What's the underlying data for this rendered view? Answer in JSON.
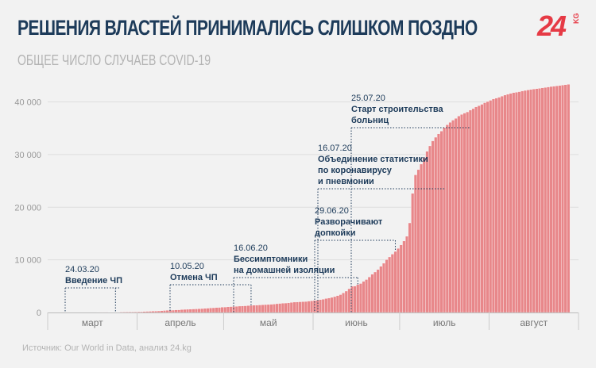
{
  "title": "РЕШЕНИЯ ВЛАСТЕЙ ПРИНИМАЛИСЬ СЛИШКОМ ПОЗДНО",
  "subtitle": "ОБЩЕЕ ЧИСЛО СЛУЧАЕВ COVID-19",
  "logo": {
    "number": "24",
    "suffix": "KG"
  },
  "source": "Источник: Our World in Data, анализ 24.kg",
  "colors": {
    "bar": "#e8878a",
    "bar_edge": "#ffffff",
    "annotation": "#1d3b5a",
    "axis": "#999999",
    "grid": "#dddddd"
  },
  "chart_data": {
    "type": "bar",
    "title": "ОБЩЕЕ ЧИСЛО СЛУЧАЕВ COVID-19",
    "xlabel": "",
    "ylabel": "",
    "ylim": [
      0,
      44000
    ],
    "grid": true,
    "y_ticks": [
      0,
      10000,
      20000,
      30000,
      40000
    ],
    "y_tick_labels": [
      "0",
      "10 000",
      "20 000",
      "30 000",
      "40 000"
    ],
    "x_month_labels": [
      "март",
      "апрель",
      "май",
      "июнь",
      "июль",
      "август"
    ],
    "start_date": "2020-03-18",
    "end_date": "2020-08-31",
    "values": [
      3,
      6,
      14,
      16,
      42,
      44,
      44,
      58,
      84,
      94,
      107,
      111,
      116,
      130,
      144,
      147,
      188,
      216,
      228,
      270,
      280,
      298,
      339,
      377,
      419,
      430,
      449,
      489,
      506,
      554,
      590,
      612,
      631,
      665,
      682,
      708,
      746,
      777,
      818,
      870,
      895,
      931,
      962,
      1017,
      1036,
      1082,
      1117,
      1138,
      1172,
      1216,
      1243,
      1270,
      1317,
      1350,
      1380,
      1403,
      1433,
      1468,
      1503,
      1519,
      1562,
      1594,
      1662,
      1716,
      1763,
      1794,
      1839,
      1908,
      1974,
      2007,
      2032,
      2055,
      2093,
      2166,
      2207,
      2285,
      2333,
      2437,
      2520,
      2653,
      2760,
      2868,
      3017,
      3199,
      3394,
      3726,
      4069,
      4513,
      4989,
      5017,
      5296,
      5506,
      5922,
      6261,
      6758,
      7262,
      7691,
      8160,
      8770,
      9358,
      10049,
      10557,
      11089,
      11591,
      12184,
      12853,
      13580,
      14480,
      17024,
      22631,
      26150,
      27143,
      28195,
      29443,
      30616,
      31653,
      32606,
      33296,
      33947,
      34461,
      35137,
      35659,
      36129,
      36543,
      36889,
      37332,
      37636,
      37887,
      38110,
      38444,
      38733,
      39074,
      39296,
      39552,
      39852,
      40080,
      40312,
      40581,
      40728,
      40900,
      41113,
      41309,
      41482,
      41629,
      41775,
      41845,
      41950,
      42089,
      42190,
      42280,
      42377,
      42457,
      42525,
      42587,
      42682,
      42766,
      42849,
      42935,
      43001,
      43063,
      43126,
      43205,
      43279,
      43354
    ]
  },
  "annotations": [
    {
      "date": "24.03.20",
      "text_lines": [
        "Введение ЧП"
      ]
    },
    {
      "date": "10.05.20",
      "text_lines": [
        "Отмена ЧП"
      ]
    },
    {
      "date": "16.06.20",
      "text_lines": [
        "Бессимптомники",
        "на домашней изоляции"
      ]
    },
    {
      "date": "29.06.20",
      "text_lines": [
        "Разворачивают",
        "допкойки"
      ]
    },
    {
      "date": "16.07.20",
      "text_lines": [
        "Объединение статистики",
        "по коронавирусу",
        "и пневмонии"
      ]
    },
    {
      "date": "25.07.20",
      "text_lines": [
        "Старт строительства",
        "больниц"
      ]
    }
  ]
}
